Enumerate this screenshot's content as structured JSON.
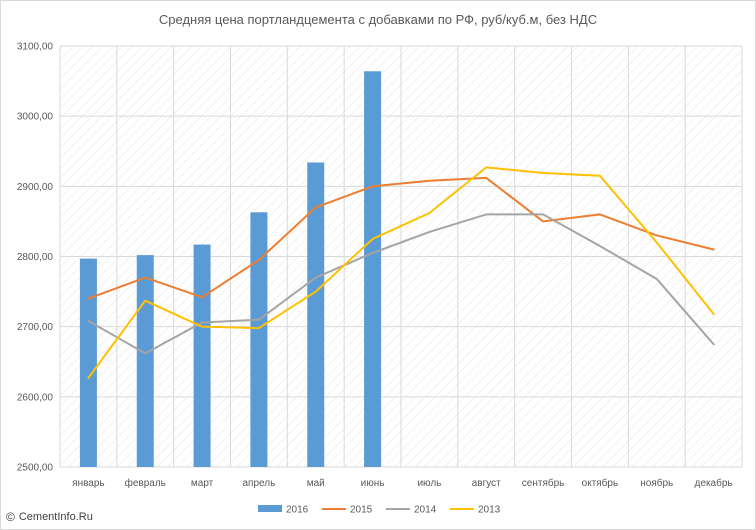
{
  "chart_data": {
    "type": "bar+line",
    "title": "Средняя цена портландцемента с добавками по РФ, руб/куб.м, без НДС",
    "categories": [
      "январь",
      "февраль",
      "март",
      "апрель",
      "май",
      "июнь",
      "июль",
      "август",
      "сентябрь",
      "октябрь",
      "ноябрь",
      "декабрь"
    ],
    "ylim": [
      2500,
      3100
    ],
    "yticks": [
      "2500,00",
      "2600,00",
      "2700,00",
      "2800,00",
      "2900,00",
      "3000,00",
      "3100,00"
    ],
    "grid": true,
    "legend_position": "bottom",
    "bar_series": {
      "name": "2016",
      "color": "#5b9bd5",
      "values": [
        2797,
        2802,
        2817,
        2863,
        2934,
        3064,
        null,
        null,
        null,
        null,
        null,
        null
      ]
    },
    "line_series": [
      {
        "name": "2015",
        "color": "#ed7d31",
        "values": [
          2740,
          2770,
          2742,
          2795,
          2870,
          2900,
          2908,
          2912,
          2850,
          2860,
          2830,
          2810
        ]
      },
      {
        "name": "2014",
        "color": "#a5a5a5",
        "values": [
          2708,
          2662,
          2706,
          2710,
          2770,
          2805,
          2835,
          2860,
          2860,
          2815,
          2768,
          2675
        ]
      },
      {
        "name": "2013",
        "color": "#ffc000",
        "values": [
          2627,
          2737,
          2700,
          2698,
          2750,
          2825,
          2862,
          2927,
          2919,
          2915,
          2820,
          2718
        ]
      }
    ]
  },
  "watermark": {
    "copyright": "©",
    "site": "CementInfo.Ru"
  }
}
